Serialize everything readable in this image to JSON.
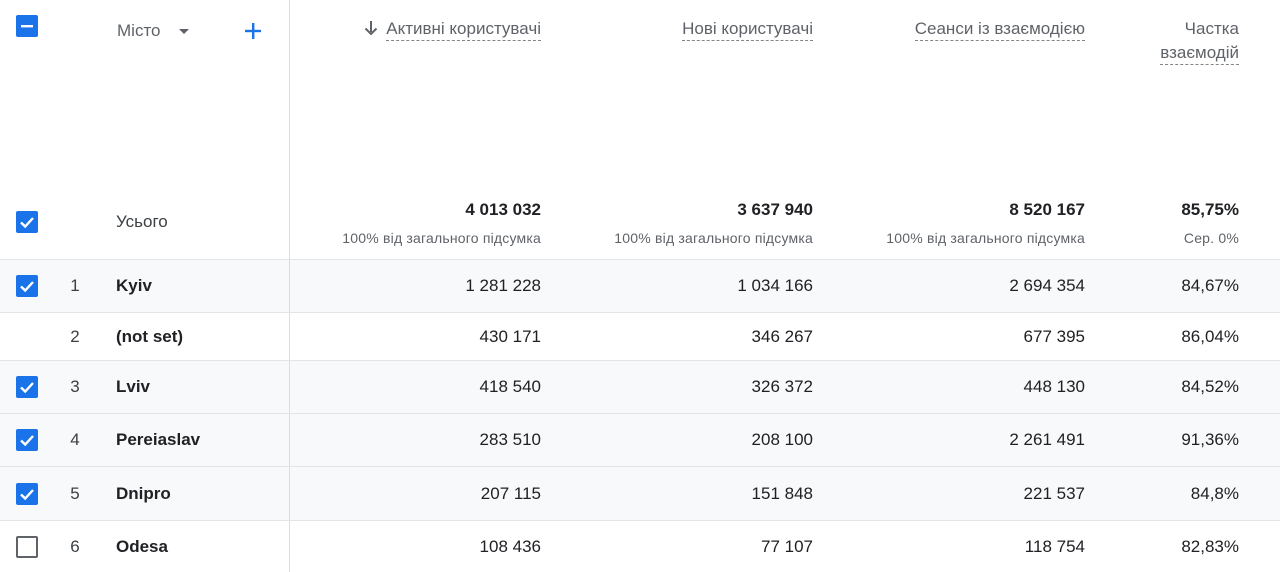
{
  "header": {
    "dimension_label": "Місто",
    "columns": [
      {
        "label": "Активні користувачі",
        "sorted": true
      },
      {
        "label": "Нові користувачі",
        "sorted": false
      },
      {
        "label": "Сеанси із взаємодією",
        "sorted": false
      },
      {
        "label_line1": "Частка",
        "label_line2": "взаємодій",
        "sorted": false
      }
    ]
  },
  "totals": {
    "label": "Усього",
    "values": [
      "4 013 032",
      "3 637 940",
      "8 520 167",
      "85,75%"
    ],
    "subs": [
      "100% від загального підсумка",
      "100% від загального підсумка",
      "100% від загального підсумка",
      "Сер. 0%"
    ]
  },
  "rows": [
    {
      "rank": "1",
      "city": "Kyiv",
      "checked": true,
      "values": [
        "1 281 228",
        "1 034 166",
        "2 694 354",
        "84,67%"
      ]
    },
    {
      "rank": "2",
      "city": "(not set)",
      "checked": null,
      "values": [
        "430 171",
        "346 267",
        "677 395",
        "86,04%"
      ]
    },
    {
      "rank": "3",
      "city": "Lviv",
      "checked": true,
      "values": [
        "418 540",
        "326 372",
        "448 130",
        "84,52%"
      ]
    },
    {
      "rank": "4",
      "city": "Pereiaslav",
      "checked": true,
      "values": [
        "283 510",
        "208 100",
        "2 261 491",
        "91,36%"
      ]
    },
    {
      "rank": "5",
      "city": "Dnipro",
      "checked": true,
      "values": [
        "207 115",
        "151 848",
        "221 537",
        "84,8%"
      ]
    },
    {
      "rank": "6",
      "city": "Odesa",
      "checked": false,
      "values": [
        "108 436",
        "77 107",
        "118 754",
        "82,83%"
      ]
    }
  ],
  "colors": {
    "accent": "#1a73e8",
    "border": "#dadce0",
    "muted_text": "#5f6368"
  },
  "icons": {
    "select_all": "indeterminate-checkbox-icon",
    "sort": "arrow-down-icon",
    "add": "plus-icon",
    "dropdown": "caret-down-icon"
  }
}
